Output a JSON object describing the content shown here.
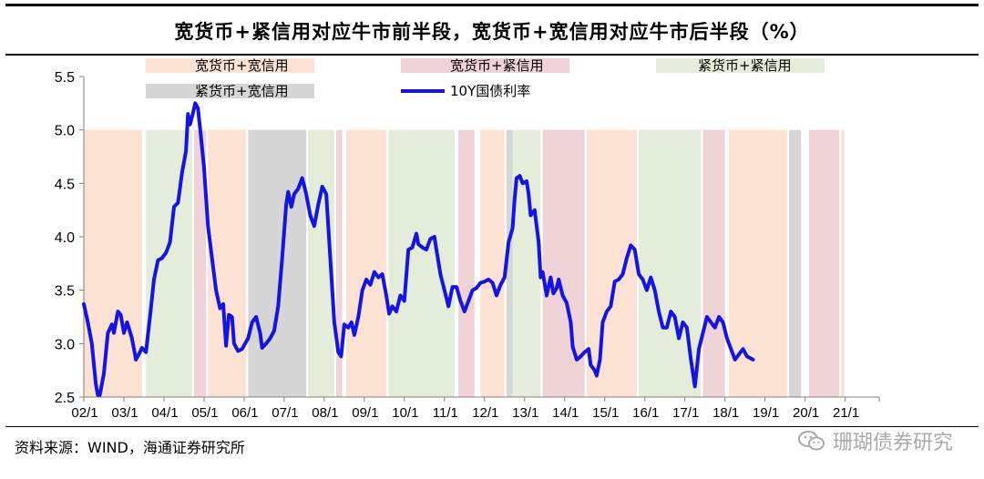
{
  "title": "宽货币+紧信用对应牛市前半段，宽货币+宽信用对应牛市后半段（%）",
  "source": "资料来源：WIND，海通证券研究所",
  "watermark": "珊瑚债券研究",
  "chart_data": {
    "type": "line",
    "y_ticks": [
      "5.5",
      "5.0",
      "4.5",
      "4.0",
      "3.5",
      "3.0",
      "2.5"
    ],
    "ylim": [
      2.5,
      5.5
    ],
    "x_tick_labels": [
      "02/1",
      "03/1",
      "04/1",
      "05/1",
      "06/1",
      "07/1",
      "08/1",
      "09/1",
      "10/1",
      "11/1",
      "12/1",
      "13/1",
      "14/1",
      "15/1",
      "16/1",
      "17/1",
      "18/1",
      "19/1",
      "20/1",
      "21/1"
    ],
    "regime_colors": {
      "wide_wide": "#fbe2d2",
      "wide_tight": "#efd3d6",
      "tight_tight": "#e4edd9",
      "tight_wide": "#d6d6d6"
    },
    "legend": {
      "wide_wide": "宽货币+宽信用",
      "wide_tight": "宽货币+紧信用",
      "tight_tight": "紧货币+紧信用",
      "tight_wide": "紧货币+宽信用",
      "series": "10Y国债利率"
    },
    "regimes": [
      {
        "start": 2002.0,
        "end": 2003.45,
        "type": "wide_wide"
      },
      {
        "start": 2003.55,
        "end": 2004.7,
        "type": "tight_tight"
      },
      {
        "start": 2004.75,
        "end": 2005.05,
        "type": "wide_tight"
      },
      {
        "start": 2005.1,
        "end": 2006.05,
        "type": "wide_wide"
      },
      {
        "start": 2006.1,
        "end": 2007.55,
        "type": "tight_wide"
      },
      {
        "start": 2007.6,
        "end": 2008.25,
        "type": "tight_tight"
      },
      {
        "start": 2008.3,
        "end": 2008.45,
        "type": "wide_tight"
      },
      {
        "start": 2008.55,
        "end": 2009.55,
        "type": "wide_wide"
      },
      {
        "start": 2009.6,
        "end": 2011.25,
        "type": "tight_tight"
      },
      {
        "start": 2011.35,
        "end": 2011.75,
        "type": "wide_tight"
      },
      {
        "start": 2011.9,
        "end": 2012.5,
        "type": "wide_wide"
      },
      {
        "start": 2012.55,
        "end": 2012.7,
        "type": "tight_wide"
      },
      {
        "start": 2012.7,
        "end": 2013.4,
        "type": "tight_tight"
      },
      {
        "start": 2013.45,
        "end": 2014.5,
        "type": "wide_tight"
      },
      {
        "start": 2014.55,
        "end": 2015.8,
        "type": "wide_wide"
      },
      {
        "start": 2015.85,
        "end": 2017.4,
        "type": "tight_tight"
      },
      {
        "start": 2017.45,
        "end": 2018.0,
        "type": "wide_tight"
      },
      {
        "start": 2018.1,
        "end": 2019.55,
        "type": "wide_wide"
      },
      {
        "start": 2019.6,
        "end": 2019.9,
        "type": "tight_wide"
      },
      {
        "start": 2020.1,
        "end": 2020.85,
        "type": "wide_tight"
      },
      {
        "start": 2020.9,
        "end": 2020.98,
        "type": "wide_wide"
      }
    ],
    "series": [
      {
        "name": "10Y国债利率",
        "color": "#1414e6",
        "points": [
          [
            2002.0,
            3.37
          ],
          [
            2002.1,
            3.2
          ],
          [
            2002.2,
            3.0
          ],
          [
            2002.3,
            2.62
          ],
          [
            2002.35,
            2.52
          ],
          [
            2002.4,
            2.52
          ],
          [
            2002.5,
            2.72
          ],
          [
            2002.6,
            3.1
          ],
          [
            2002.7,
            3.18
          ],
          [
            2002.75,
            3.1
          ],
          [
            2002.85,
            3.3
          ],
          [
            2002.92,
            3.27
          ],
          [
            2003.0,
            3.1
          ],
          [
            2003.08,
            3.2
          ],
          [
            2003.2,
            3.05
          ],
          [
            2003.3,
            2.85
          ],
          [
            2003.4,
            2.92
          ],
          [
            2003.45,
            2.96
          ],
          [
            2003.55,
            2.92
          ],
          [
            2003.65,
            3.25
          ],
          [
            2003.75,
            3.6
          ],
          [
            2003.85,
            3.78
          ],
          [
            2003.95,
            3.8
          ],
          [
            2004.05,
            3.85
          ],
          [
            2004.15,
            3.95
          ],
          [
            2004.25,
            4.28
          ],
          [
            2004.35,
            4.32
          ],
          [
            2004.45,
            4.6
          ],
          [
            2004.55,
            4.8
          ],
          [
            2004.6,
            5.15
          ],
          [
            2004.65,
            5.05
          ],
          [
            2004.72,
            5.15
          ],
          [
            2004.78,
            5.25
          ],
          [
            2004.85,
            5.2
          ],
          [
            2004.92,
            4.95
          ],
          [
            2005.0,
            4.65
          ],
          [
            2005.1,
            4.1
          ],
          [
            2005.2,
            3.8
          ],
          [
            2005.3,
            3.5
          ],
          [
            2005.4,
            3.33
          ],
          [
            2005.48,
            3.37
          ],
          [
            2005.55,
            2.98
          ],
          [
            2005.62,
            3.27
          ],
          [
            2005.7,
            3.25
          ],
          [
            2005.75,
            3.0
          ],
          [
            2005.85,
            2.93
          ],
          [
            2005.95,
            2.95
          ],
          [
            2006.1,
            3.05
          ],
          [
            2006.2,
            3.2
          ],
          [
            2006.3,
            3.25
          ],
          [
            2006.4,
            3.1
          ],
          [
            2006.45,
            2.96
          ],
          [
            2006.55,
            3.0
          ],
          [
            2006.65,
            3.05
          ],
          [
            2006.75,
            3.12
          ],
          [
            2006.85,
            3.35
          ],
          [
            2006.95,
            3.8
          ],
          [
            2007.05,
            4.3
          ],
          [
            2007.1,
            4.42
          ],
          [
            2007.18,
            4.28
          ],
          [
            2007.25,
            4.4
          ],
          [
            2007.35,
            4.45
          ],
          [
            2007.45,
            4.55
          ],
          [
            2007.55,
            4.4
          ],
          [
            2007.65,
            4.2
          ],
          [
            2007.75,
            4.1
          ],
          [
            2007.85,
            4.3
          ],
          [
            2007.95,
            4.47
          ],
          [
            2008.05,
            4.4
          ],
          [
            2008.15,
            3.8
          ],
          [
            2008.25,
            3.2
          ],
          [
            2008.35,
            2.92
          ],
          [
            2008.42,
            2.88
          ],
          [
            2008.5,
            3.18
          ],
          [
            2008.6,
            3.15
          ],
          [
            2008.68,
            3.2
          ],
          [
            2008.75,
            3.08
          ],
          [
            2008.85,
            3.25
          ],
          [
            2008.95,
            3.5
          ],
          [
            2009.05,
            3.6
          ],
          [
            2009.15,
            3.55
          ],
          [
            2009.25,
            3.67
          ],
          [
            2009.35,
            3.62
          ],
          [
            2009.45,
            3.65
          ],
          [
            2009.55,
            3.45
          ],
          [
            2009.62,
            3.28
          ],
          [
            2009.7,
            3.35
          ],
          [
            2009.8,
            3.3
          ],
          [
            2009.9,
            3.45
          ],
          [
            2010.0,
            3.4
          ],
          [
            2010.1,
            3.88
          ],
          [
            2010.2,
            3.9
          ],
          [
            2010.3,
            4.03
          ],
          [
            2010.35,
            3.93
          ],
          [
            2010.45,
            3.9
          ],
          [
            2010.55,
            3.88
          ],
          [
            2010.65,
            3.98
          ],
          [
            2010.75,
            4.0
          ],
          [
            2010.8,
            3.88
          ],
          [
            2010.9,
            3.65
          ],
          [
            2011.0,
            3.5
          ],
          [
            2011.1,
            3.35
          ],
          [
            2011.2,
            3.53
          ],
          [
            2011.3,
            3.53
          ],
          [
            2011.4,
            3.4
          ],
          [
            2011.5,
            3.3
          ],
          [
            2011.6,
            3.4
          ],
          [
            2011.7,
            3.5
          ],
          [
            2011.8,
            3.52
          ],
          [
            2011.9,
            3.57
          ],
          [
            2012.0,
            3.58
          ],
          [
            2012.1,
            3.6
          ],
          [
            2012.2,
            3.57
          ],
          [
            2012.3,
            3.45
          ],
          [
            2012.4,
            3.55
          ],
          [
            2012.5,
            3.62
          ],
          [
            2012.6,
            3.95
          ],
          [
            2012.7,
            4.08
          ],
          [
            2012.75,
            4.35
          ],
          [
            2012.8,
            4.55
          ],
          [
            2012.88,
            4.57
          ],
          [
            2012.95,
            4.5
          ],
          [
            2013.05,
            4.52
          ],
          [
            2013.1,
            4.4
          ],
          [
            2013.15,
            4.2
          ],
          [
            2013.25,
            4.25
          ],
          [
            2013.35,
            3.95
          ],
          [
            2013.4,
            3.62
          ],
          [
            2013.45,
            3.67
          ],
          [
            2013.55,
            3.45
          ],
          [
            2013.65,
            3.62
          ],
          [
            2013.72,
            3.47
          ],
          [
            2013.8,
            3.52
          ],
          [
            2013.85,
            3.6
          ],
          [
            2013.95,
            3.45
          ],
          [
            2014.05,
            3.38
          ],
          [
            2014.15,
            3.2
          ],
          [
            2014.2,
            2.97
          ],
          [
            2014.3,
            2.85
          ],
          [
            2014.4,
            2.88
          ],
          [
            2014.5,
            2.92
          ],
          [
            2014.6,
            2.95
          ],
          [
            2014.65,
            2.8
          ],
          [
            2014.75,
            2.75
          ],
          [
            2014.8,
            2.7
          ],
          [
            2014.88,
            2.85
          ],
          [
            2014.95,
            3.2
          ],
          [
            2015.05,
            3.3
          ],
          [
            2015.15,
            3.35
          ],
          [
            2015.25,
            3.58
          ],
          [
            2015.35,
            3.6
          ],
          [
            2015.45,
            3.65
          ],
          [
            2015.55,
            3.8
          ],
          [
            2015.65,
            3.92
          ],
          [
            2015.75,
            3.88
          ],
          [
            2015.85,
            3.65
          ],
          [
            2015.95,
            3.6
          ],
          [
            2016.05,
            3.5
          ],
          [
            2016.15,
            3.62
          ],
          [
            2016.25,
            3.5
          ],
          [
            2016.35,
            3.3
          ],
          [
            2016.45,
            3.15
          ],
          [
            2016.55,
            3.15
          ],
          [
            2016.65,
            3.3
          ],
          [
            2016.75,
            3.25
          ],
          [
            2016.85,
            3.05
          ],
          [
            2016.95,
            3.2
          ],
          [
            2017.05,
            3.15
          ],
          [
            2017.15,
            2.85
          ],
          [
            2017.25,
            2.6
          ],
          [
            2017.35,
            2.95
          ],
          [
            2017.45,
            3.1
          ],
          [
            2017.55,
            3.25
          ],
          [
            2017.65,
            3.2
          ],
          [
            2017.75,
            3.15
          ],
          [
            2017.85,
            3.25
          ],
          [
            2017.95,
            3.2
          ],
          [
            2018.05,
            3.05
          ],
          [
            2018.15,
            2.95
          ],
          [
            2018.25,
            2.85
          ],
          [
            2018.35,
            2.9
          ],
          [
            2018.45,
            2.95
          ],
          [
            2018.55,
            2.88
          ],
          [
            2018.7,
            2.85
          ]
        ]
      }
    ]
  }
}
